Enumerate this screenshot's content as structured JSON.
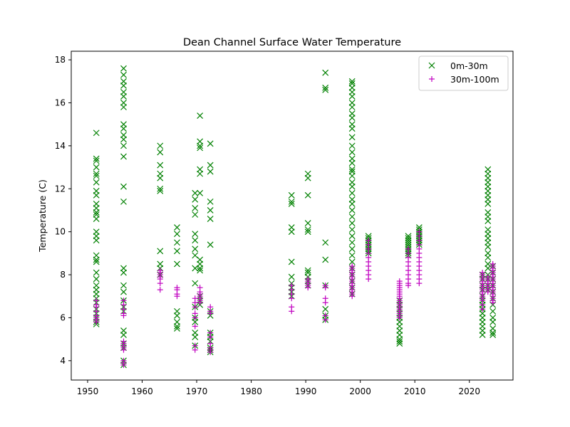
{
  "chart_data": {
    "type": "scatter",
    "title": "Dean Channel Surface Water Temperature",
    "xlabel": "",
    "ylabel": "Temperature (C)",
    "xlim": [
      1947,
      2028
    ],
    "ylim": [
      3.1,
      18.4
    ],
    "xticks": [
      1950,
      1960,
      1970,
      1980,
      1990,
      2000,
      2010,
      2020
    ],
    "yticks": [
      4,
      6,
      8,
      10,
      12,
      14,
      16,
      18
    ],
    "legend_position": "top-right",
    "series": [
      {
        "name": "0m-30m",
        "marker": "x",
        "color": "#008000",
        "groups": [
          {
            "x": 1951.6,
            "y": [
              14.6,
              13.4,
              13.3,
              13.0,
              12.7,
              12.6,
              12.3,
              11.9,
              11.7,
              11.3,
              11.1,
              10.9,
              10.8,
              10.6,
              10.0,
              9.8,
              9.6,
              8.9,
              8.7,
              8.6,
              8.1,
              7.8,
              7.5,
              7.3,
              7.1,
              6.9,
              6.7,
              6.4,
              6.2,
              6.0,
              5.8,
              5.7
            ]
          },
          {
            "x": 1956.6,
            "y": [
              17.6,
              17.3,
              17.0,
              16.8,
              16.5,
              16.3,
              16.0,
              15.8,
              15.0,
              14.8,
              14.5,
              14.3,
              14.0,
              13.5,
              12.1,
              11.4,
              8.3,
              8.1,
              7.5,
              7.2,
              6.8,
              6.5,
              6.3,
              5.4,
              5.2,
              4.8,
              4.6,
              4.0,
              3.8
            ]
          },
          {
            "x": 1963.3,
            "y": [
              14.0,
              13.7,
              13.1,
              12.7,
              12.5,
              12.0,
              11.9,
              9.1,
              8.5,
              8.3,
              8.0
            ]
          },
          {
            "x": 1966.4,
            "y": [
              10.2,
              9.9,
              9.5,
              9.1,
              8.5,
              6.3,
              6.1,
              5.8,
              5.6,
              5.5
            ]
          },
          {
            "x": 1969.7,
            "y": [
              11.8,
              11.5,
              11.1,
              10.8,
              9.9,
              9.6,
              9.2,
              8.9,
              8.3,
              7.6,
              6.5,
              6.0,
              5.8,
              5.3,
              5.1,
              4.7
            ]
          },
          {
            "x": 1970.6,
            "y": [
              15.4,
              14.2,
              14.0,
              13.9,
              12.9,
              12.7,
              11.8,
              8.7,
              8.5,
              8.3,
              8.2,
              7.0,
              6.8,
              6.6
            ]
          },
          {
            "x": 1972.5,
            "y": [
              14.1,
              13.1,
              12.8,
              11.4,
              11.0,
              10.6,
              9.4,
              6.3,
              6.1,
              5.3,
              5.1,
              4.9,
              4.6,
              4.5,
              4.4
            ]
          },
          {
            "x": 1987.4,
            "y": [
              11.7,
              11.4,
              11.3,
              10.2,
              10.0,
              8.6,
              7.9,
              7.6,
              7.4,
              7.2,
              7.0
            ]
          },
          {
            "x": 1990.4,
            "y": [
              12.7,
              12.5,
              11.7,
              10.4,
              10.1,
              10.0,
              8.2,
              8.1,
              7.9,
              7.7,
              7.5
            ]
          },
          {
            "x": 1993.6,
            "y": [
              17.4,
              16.7,
              16.6,
              9.5,
              8.7,
              7.5,
              6.4,
              6.1,
              5.9
            ]
          },
          {
            "x": 1998.5,
            "y": [
              17.0,
              16.9,
              16.7,
              16.5,
              16.3,
              16.0,
              15.8,
              15.5,
              15.3,
              15.0,
              14.8,
              14.4,
              14.0,
              13.7,
              13.4,
              13.2,
              12.9,
              12.8,
              12.6,
              12.3,
              12.1,
              11.8,
              11.5,
              11.3,
              11.0,
              10.7,
              10.4,
              10.1,
              9.8,
              9.5,
              9.2,
              8.9,
              8.6,
              8.3,
              8.0,
              7.7,
              7.4,
              7.1
            ]
          },
          {
            "x": 2001.5,
            "y": [
              9.8,
              9.7,
              9.6,
              9.5,
              9.4,
              9.3,
              9.2,
              9.1,
              9.0
            ]
          },
          {
            "x": 2007.2,
            "y": [
              6.8,
              6.6,
              6.4,
              6.2,
              6.0,
              5.8,
              5.6,
              5.4,
              5.2,
              5.0,
              4.9,
              4.8
            ]
          },
          {
            "x": 2008.8,
            "y": [
              9.8,
              9.7,
              9.6,
              9.5,
              9.4,
              9.3,
              9.2,
              9.1,
              9.0,
              8.9
            ]
          },
          {
            "x": 2010.8,
            "y": [
              10.2,
              10.1,
              10.0,
              9.9,
              9.8,
              9.7,
              9.6,
              9.5,
              9.4
            ]
          },
          {
            "x": 2022.4,
            "y": [
              8.0,
              7.8,
              7.5,
              7.3,
              7.0,
              6.8,
              6.6,
              6.4,
              6.2,
              6.0,
              5.8,
              5.6,
              5.4,
              5.2
            ]
          },
          {
            "x": 2023.4,
            "y": [
              12.9,
              12.7,
              12.5,
              12.3,
              12.1,
              11.9,
              11.7,
              11.5,
              11.3,
              10.9,
              10.7,
              10.5,
              10.1,
              9.9,
              9.7,
              9.5,
              9.3,
              9.0,
              8.8,
              8.5,
              8.3,
              8.0,
              7.8,
              7.5,
              7.3
            ]
          },
          {
            "x": 2024.3,
            "y": [
              8.4,
              8.1,
              7.8,
              7.5,
              7.2,
              6.9,
              6.6,
              6.3,
              6.0,
              5.8,
              5.5,
              5.3,
              5.2
            ]
          }
        ]
      },
      {
        "name": "30m-100m",
        "marker": "+",
        "color": "#c000c0",
        "groups": [
          {
            "x": 1951.6,
            "y": [
              6.8,
              6.6,
              6.5,
              6.3,
              6.1,
              6.0,
              5.9,
              5.8
            ]
          },
          {
            "x": 1956.6,
            "y": [
              6.8,
              6.6,
              6.4,
              6.2,
              6.1,
              4.9,
              4.8,
              4.7,
              4.6,
              4.5,
              4.0,
              3.9,
              3.8
            ]
          },
          {
            "x": 1963.3,
            "y": [
              8.2,
              8.1,
              8.0,
              7.9,
              7.8,
              7.6,
              7.3
            ]
          },
          {
            "x": 1966.4,
            "y": [
              7.4,
              7.3,
              7.1,
              7.0
            ]
          },
          {
            "x": 1969.7,
            "y": [
              6.9,
              6.7,
              6.5,
              6.2,
              6.0,
              5.6,
              4.7,
              4.5
            ]
          },
          {
            "x": 1970.6,
            "y": [
              7.4,
              7.2,
              7.1,
              7.0,
              6.9,
              6.8,
              6.7
            ]
          },
          {
            "x": 1972.5,
            "y": [
              6.5,
              6.3,
              6.2,
              5.3,
              5.1,
              4.8,
              4.6,
              4.5,
              4.4
            ]
          },
          {
            "x": 1987.4,
            "y": [
              7.5,
              7.3,
              7.1,
              6.9,
              6.5,
              6.3
            ]
          },
          {
            "x": 1990.4,
            "y": [
              7.8,
              7.7,
              7.6,
              7.5,
              7.4
            ]
          },
          {
            "x": 1993.6,
            "y": [
              7.5,
              7.4,
              6.9,
              6.7,
              6.1,
              5.9
            ]
          },
          {
            "x": 1998.5,
            "y": [
              8.4,
              8.3,
              8.2,
              8.1,
              8.0,
              7.9,
              7.8,
              7.7,
              7.6,
              7.5,
              7.4,
              7.3,
              7.2,
              7.1,
              7.0
            ]
          },
          {
            "x": 2001.5,
            "y": [
              9.6,
              9.4,
              9.2,
              9.0,
              8.8,
              8.6,
              8.4,
              8.2,
              8.0,
              7.8
            ]
          },
          {
            "x": 2007.2,
            "y": [
              7.7,
              7.6,
              7.5,
              7.4,
              7.3,
              7.2,
              7.1,
              7.0,
              6.9,
              6.8,
              6.7,
              6.6,
              6.5,
              6.4,
              6.3,
              6.2,
              6.1,
              6.0
            ]
          },
          {
            "x": 2008.8,
            "y": [
              9.2,
              9.0,
              8.8,
              8.6,
              8.4,
              8.2,
              8.0,
              7.8,
              7.6,
              7.5
            ]
          },
          {
            "x": 2010.8,
            "y": [
              10.0,
              9.8,
              9.6,
              9.4,
              9.2,
              9.0,
              8.8,
              8.6,
              8.4,
              8.2,
              8.0,
              7.8,
              7.6
            ]
          },
          {
            "x": 2022.4,
            "y": [
              8.1,
              8.0,
              7.9,
              7.8,
              7.7,
              7.6,
              7.5,
              7.4,
              7.3,
              7.2,
              7.1,
              7.0,
              6.9,
              6.8,
              6.6,
              6.4
            ]
          },
          {
            "x": 2023.4,
            "y": [
              7.9,
              7.8,
              7.7,
              7.6,
              7.5,
              7.4,
              7.3,
              7.2
            ]
          },
          {
            "x": 2024.3,
            "y": [
              8.5,
              8.4,
              8.3,
              8.2,
              8.1,
              8.0,
              7.9,
              7.8,
              7.7,
              7.6,
              7.5,
              7.4,
              7.3,
              7.2,
              7.1,
              7.0,
              6.9,
              6.8,
              6.7
            ]
          }
        ]
      }
    ]
  }
}
